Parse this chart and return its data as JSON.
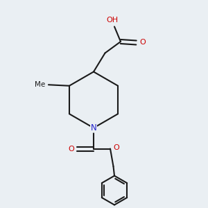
{
  "background_color": "#eaeff3",
  "atom_color_N": "#2222cc",
  "atom_color_O": "#cc0000",
  "atom_color_H": "#888888",
  "bond_color": "#1a1a1a",
  "bond_width": 1.5,
  "figsize": [
    3.0,
    3.0
  ],
  "dpi": 100,
  "xlim": [
    0,
    10
  ],
  "ylim": [
    0,
    10
  ]
}
